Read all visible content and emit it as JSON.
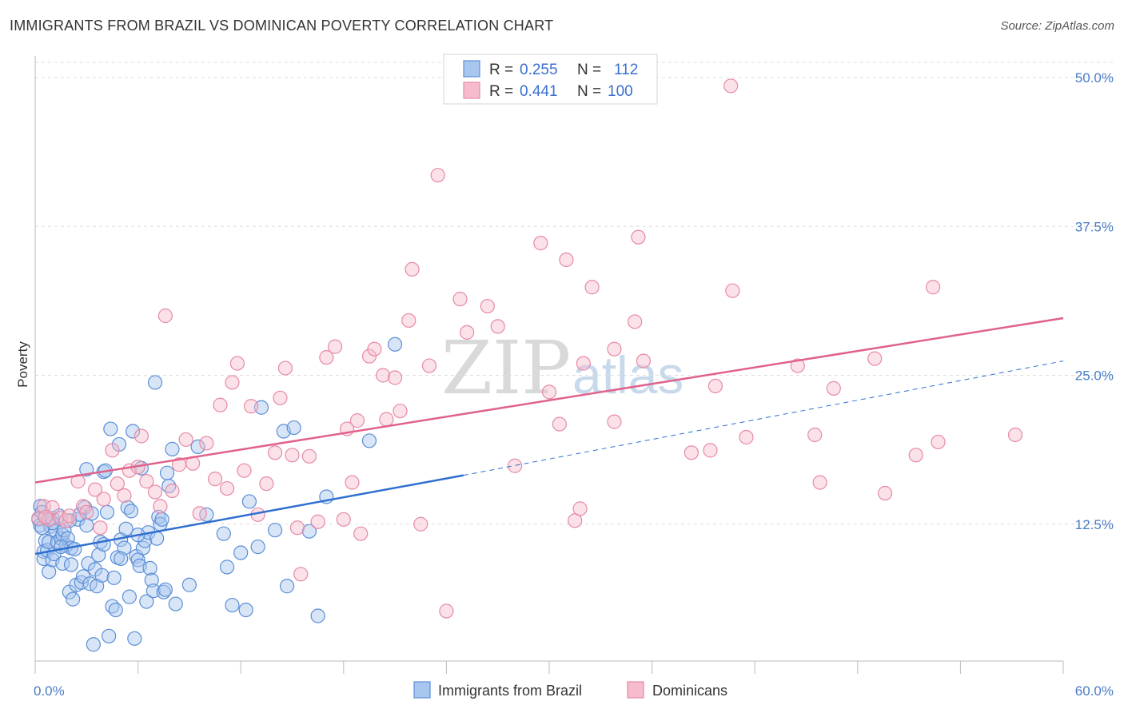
{
  "title": "IMMIGRANTS FROM BRAZIL VS DOMINICAN POVERTY CORRELATION CHART",
  "source": "Source: ZipAtlas.com",
  "watermark": {
    "zip": "ZIP",
    "atlas": "atlas"
  },
  "colors": {
    "blue_fill": "#a9c6ee",
    "blue_stroke": "#5b8fd8",
    "blue_line": "#2f6fcf",
    "pink_fill": "#f6bccd",
    "pink_stroke": "#e78aa7",
    "pink_line": "#e0628c",
    "grid": "#dddddd",
    "tick_text": "#4a7cc7"
  },
  "legend": {
    "rows": [
      {
        "r_label": "R =",
        "r_value": "0.255",
        "n_label": "N =",
        "n_value": "112"
      },
      {
        "r_label": "R =",
        "r_value": "0.441",
        "n_label": "N =",
        "n_value": "100"
      }
    ]
  },
  "chart_data": {
    "type": "scatter",
    "ylabel": "Poverty",
    "xlabel": "",
    "xlim": [
      0,
      60
    ],
    "ylim": [
      0,
      52
    ],
    "x_tick_labels": [
      "0.0%",
      "60.0%"
    ],
    "y_ticks": [
      12.5,
      25.0,
      37.5,
      50.0
    ],
    "y_tick_labels": [
      "12.5%",
      "25.0%",
      "37.5%",
      "50.0%"
    ],
    "grid": true,
    "legend_position": "top-center",
    "series": [
      {
        "name": "Immigrants from Brazil",
        "color": "#5b8fd8",
        "trend": {
          "x": [
            0,
            25
          ],
          "y": [
            10.0,
            16.6
          ],
          "dashed_to_x": 60,
          "dashed_to_y": 26.2
        },
        "points": [
          [
            0.2,
            12.9
          ],
          [
            0.3,
            12.4
          ],
          [
            0.3,
            14.0
          ],
          [
            0.4,
            13.5
          ],
          [
            0.5,
            10.2
          ],
          [
            0.5,
            9.6
          ],
          [
            0.6,
            11.1
          ],
          [
            0.7,
            10.3
          ],
          [
            0.8,
            8.5
          ],
          [
            0.8,
            11.0
          ],
          [
            0.9,
            12.3
          ],
          [
            1.0,
            9.5
          ],
          [
            1.0,
            13.0
          ],
          [
            1.1,
            10.0
          ],
          [
            1.2,
            11.9
          ],
          [
            1.3,
            11.0
          ],
          [
            1.4,
            13.2
          ],
          [
            1.5,
            11.3
          ],
          [
            1.6,
            11.6
          ],
          [
            1.6,
            9.2
          ],
          [
            1.7,
            12.0
          ],
          [
            1.8,
            10.7
          ],
          [
            1.9,
            11.3
          ],
          [
            2.0,
            6.8
          ],
          [
            2.1,
            9.1
          ],
          [
            2.1,
            10.5
          ],
          [
            2.2,
            6.2
          ],
          [
            2.3,
            10.4
          ],
          [
            2.4,
            7.4
          ],
          [
            2.5,
            12.9
          ],
          [
            2.6,
            13.3
          ],
          [
            2.7,
            7.6
          ],
          [
            2.8,
            8.1
          ],
          [
            2.9,
            13.9
          ],
          [
            3.0,
            17.1
          ],
          [
            3.1,
            9.2
          ],
          [
            3.2,
            7.5
          ],
          [
            3.3,
            13.4
          ],
          [
            3.4,
            2.4
          ],
          [
            3.5,
            8.7
          ],
          [
            3.6,
            7.3
          ],
          [
            3.7,
            9.9
          ],
          [
            3.8,
            11.0
          ],
          [
            3.9,
            8.2
          ],
          [
            4.0,
            16.9
          ],
          [
            4.1,
            17.0
          ],
          [
            4.2,
            13.5
          ],
          [
            4.3,
            3.1
          ],
          [
            4.4,
            20.5
          ],
          [
            4.5,
            5.6
          ],
          [
            4.6,
            8.0
          ],
          [
            4.7,
            5.3
          ],
          [
            4.8,
            9.7
          ],
          [
            4.9,
            19.2
          ],
          [
            5.0,
            11.2
          ],
          [
            5.2,
            10.5
          ],
          [
            5.3,
            12.1
          ],
          [
            5.4,
            13.9
          ],
          [
            5.5,
            6.4
          ],
          [
            5.6,
            13.6
          ],
          [
            5.7,
            20.3
          ],
          [
            5.8,
            2.9
          ],
          [
            5.9,
            9.8
          ],
          [
            6.0,
            9.5
          ],
          [
            6.1,
            9.0
          ],
          [
            6.2,
            17.2
          ],
          [
            6.3,
            10.5
          ],
          [
            6.4,
            11.1
          ],
          [
            6.5,
            6.0
          ],
          [
            6.6,
            11.8
          ],
          [
            6.7,
            8.8
          ],
          [
            6.8,
            7.8
          ],
          [
            6.9,
            6.9
          ],
          [
            7.0,
            24.4
          ],
          [
            7.1,
            11.3
          ],
          [
            7.2,
            13.1
          ],
          [
            7.3,
            12.5
          ],
          [
            7.4,
            12.9
          ],
          [
            7.5,
            6.8
          ],
          [
            7.6,
            7.0
          ],
          [
            7.7,
            16.8
          ],
          [
            7.8,
            15.7
          ],
          [
            8.0,
            18.8
          ],
          [
            8.2,
            5.8
          ],
          [
            9.0,
            7.4
          ],
          [
            9.5,
            19.0
          ],
          [
            10.0,
            13.3
          ],
          [
            11.0,
            11.7
          ],
          [
            11.2,
            8.9
          ],
          [
            11.5,
            5.7
          ],
          [
            12.0,
            10.1
          ],
          [
            12.3,
            5.3
          ],
          [
            12.5,
            14.4
          ],
          [
            13.0,
            10.6
          ],
          [
            13.2,
            22.3
          ],
          [
            14.0,
            12.0
          ],
          [
            14.5,
            20.3
          ],
          [
            14.7,
            7.3
          ],
          [
            15.1,
            20.6
          ],
          [
            16.0,
            11.9
          ],
          [
            16.5,
            4.8
          ],
          [
            17.0,
            14.8
          ],
          [
            19.5,
            19.5
          ],
          [
            21.0,
            27.6
          ],
          [
            1.0,
            12.6
          ],
          [
            2.0,
            12.8
          ],
          [
            3.0,
            12.4
          ],
          [
            4.0,
            10.8
          ],
          [
            5.0,
            9.6
          ],
          [
            6.0,
            11.6
          ],
          [
            0.4,
            12.2
          ],
          [
            1.5,
            10.6
          ]
        ]
      },
      {
        "name": "Dominicans",
        "color": "#e78aa7",
        "trend": {
          "x": [
            0,
            60
          ],
          "y": [
            16.0,
            29.8
          ]
        },
        "points": [
          [
            0.2,
            13.0
          ],
          [
            0.5,
            14.0
          ],
          [
            0.8,
            12.9
          ],
          [
            1.0,
            13.9
          ],
          [
            1.5,
            13.0
          ],
          [
            1.8,
            12.8
          ],
          [
            2.0,
            13.2
          ],
          [
            2.5,
            16.1
          ],
          [
            2.8,
            14.0
          ],
          [
            3.0,
            13.5
          ],
          [
            3.5,
            15.4
          ],
          [
            3.8,
            12.2
          ],
          [
            4.0,
            14.6
          ],
          [
            4.5,
            18.7
          ],
          [
            4.8,
            15.9
          ],
          [
            5.2,
            14.9
          ],
          [
            5.5,
            17.0
          ],
          [
            6.0,
            17.3
          ],
          [
            6.2,
            19.9
          ],
          [
            6.5,
            16.1
          ],
          [
            7.0,
            15.2
          ],
          [
            7.3,
            14.0
          ],
          [
            7.6,
            30.0
          ],
          [
            8.0,
            15.3
          ],
          [
            8.4,
            17.5
          ],
          [
            8.8,
            19.6
          ],
          [
            9.2,
            17.6
          ],
          [
            9.6,
            13.4
          ],
          [
            10.0,
            19.3
          ],
          [
            10.5,
            16.3
          ],
          [
            10.8,
            22.5
          ],
          [
            11.2,
            15.5
          ],
          [
            11.5,
            24.4
          ],
          [
            11.8,
            26.0
          ],
          [
            12.2,
            17.0
          ],
          [
            12.6,
            22.4
          ],
          [
            13.0,
            13.3
          ],
          [
            13.5,
            15.9
          ],
          [
            14.0,
            18.5
          ],
          [
            14.3,
            23.1
          ],
          [
            14.6,
            25.6
          ],
          [
            15.0,
            18.3
          ],
          [
            15.3,
            12.2
          ],
          [
            15.5,
            8.3
          ],
          [
            16.0,
            18.2
          ],
          [
            16.5,
            12.7
          ],
          [
            17.0,
            26.5
          ],
          [
            17.5,
            27.4
          ],
          [
            18.0,
            12.9
          ],
          [
            18.2,
            20.5
          ],
          [
            18.5,
            16.0
          ],
          [
            18.8,
            21.2
          ],
          [
            19.0,
            11.7
          ],
          [
            19.5,
            26.6
          ],
          [
            19.8,
            27.2
          ],
          [
            20.3,
            25.0
          ],
          [
            20.5,
            21.3
          ],
          [
            21.0,
            24.8
          ],
          [
            21.3,
            22.0
          ],
          [
            21.8,
            29.6
          ],
          [
            22.0,
            33.9
          ],
          [
            22.5,
            12.5
          ],
          [
            23.0,
            25.8
          ],
          [
            23.5,
            41.8
          ],
          [
            24.0,
            5.2
          ],
          [
            24.8,
            31.4
          ],
          [
            25.2,
            28.6
          ],
          [
            26.4,
            30.8
          ],
          [
            27.0,
            29.1
          ],
          [
            28.0,
            17.4
          ],
          [
            29.5,
            36.1
          ],
          [
            30.0,
            23.6
          ],
          [
            30.6,
            20.9
          ],
          [
            31.0,
            34.7
          ],
          [
            31.5,
            12.8
          ],
          [
            31.8,
            13.8
          ],
          [
            32.0,
            26.0
          ],
          [
            32.5,
            32.4
          ],
          [
            33.8,
            21.1
          ],
          [
            33.8,
            27.2
          ],
          [
            35.0,
            29.5
          ],
          [
            35.2,
            36.6
          ],
          [
            35.5,
            26.2
          ],
          [
            38.3,
            18.5
          ],
          [
            39.4,
            18.7
          ],
          [
            39.7,
            24.1
          ],
          [
            40.6,
            49.3
          ],
          [
            40.7,
            32.1
          ],
          [
            41.5,
            19.8
          ],
          [
            44.5,
            25.8
          ],
          [
            45.5,
            20.0
          ],
          [
            45.8,
            16.0
          ],
          [
            46.6,
            23.9
          ],
          [
            49.0,
            26.4
          ],
          [
            49.6,
            15.1
          ],
          [
            51.4,
            18.3
          ],
          [
            52.4,
            32.4
          ],
          [
            52.7,
            19.4
          ],
          [
            57.2,
            20.0
          ],
          [
            0.6,
            13.1
          ]
        ]
      }
    ]
  },
  "bottom_legend": [
    {
      "label": "Immigrants from Brazil"
    },
    {
      "label": "Dominicans"
    }
  ]
}
